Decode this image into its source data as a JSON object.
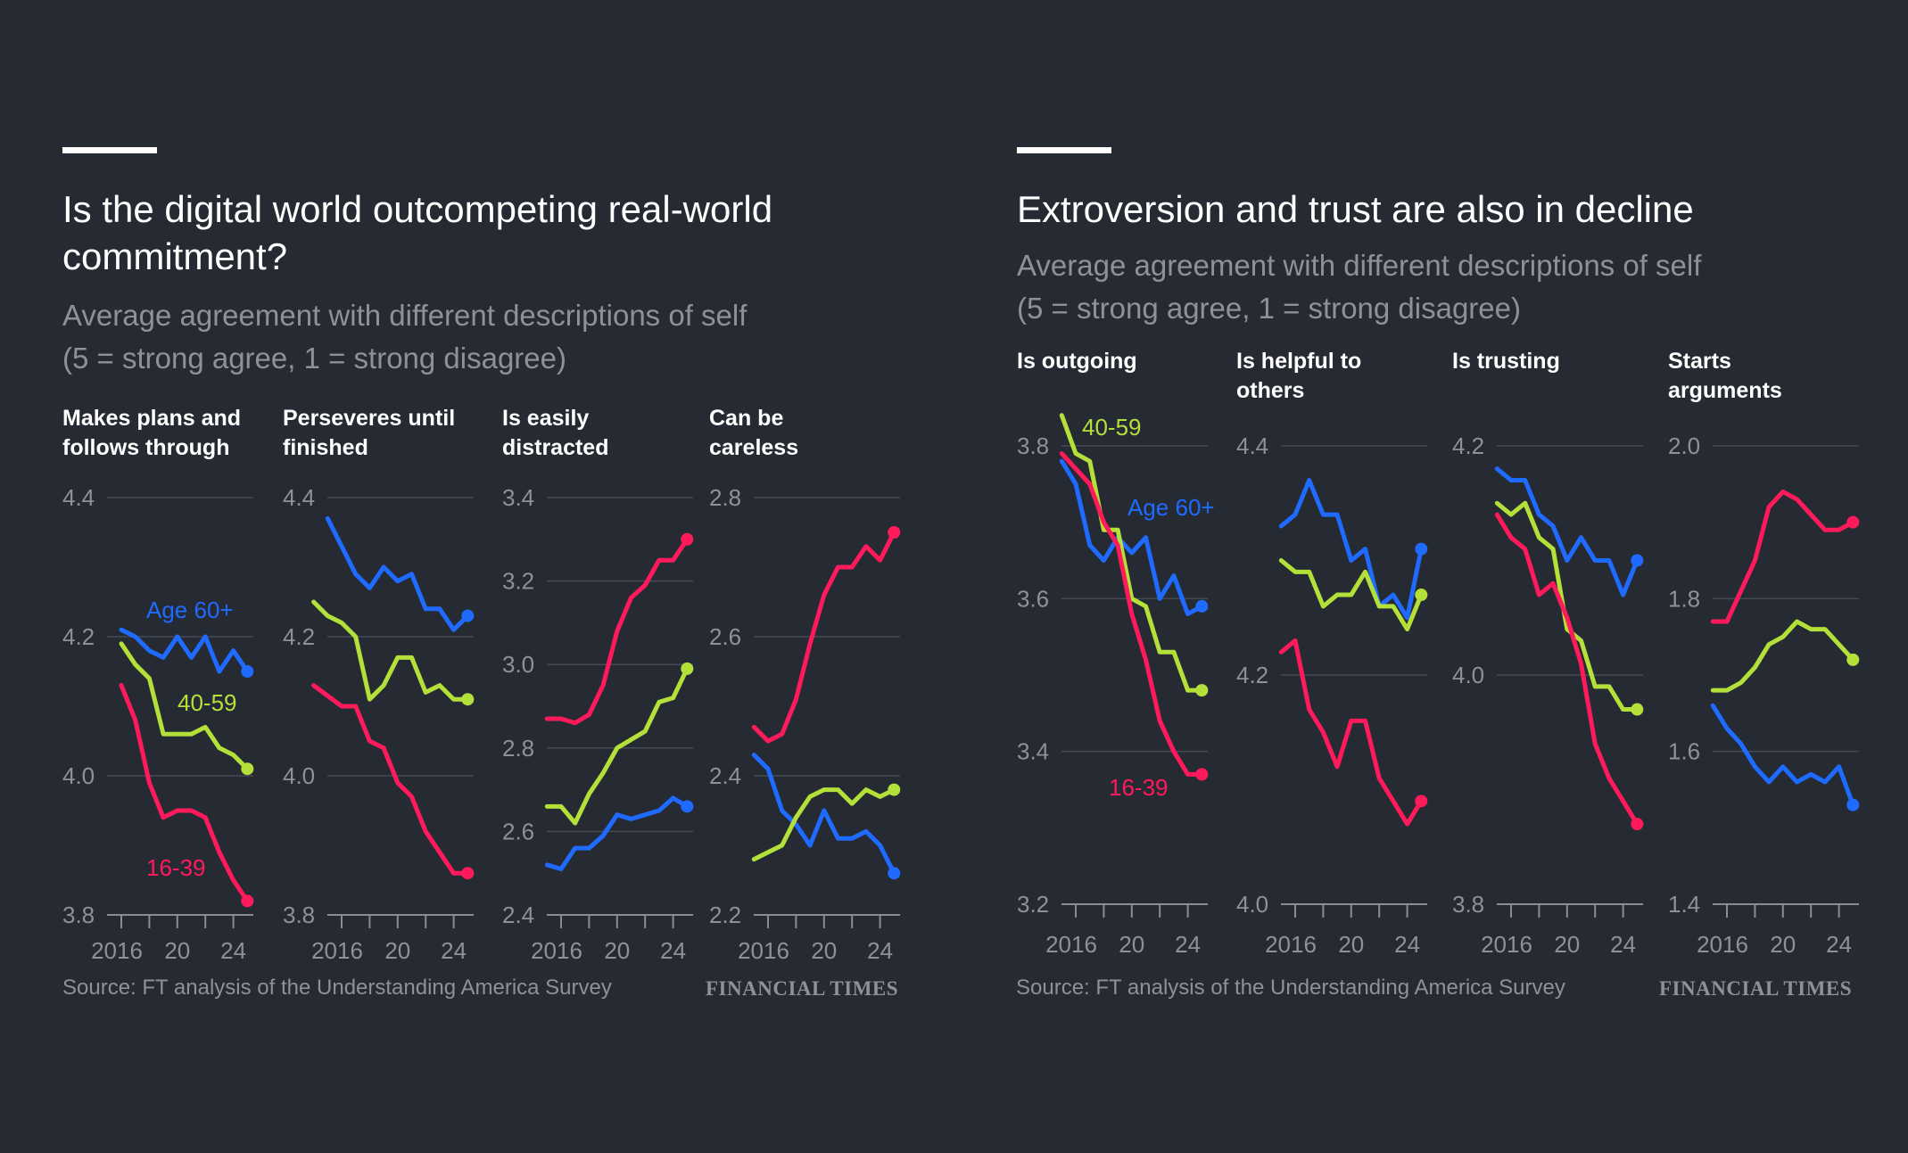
{
  "left": {
    "title": "Is the digital world outcompeting real-world commitment?",
    "subtitle_line1": "Average agreement with different descriptions of self",
    "subtitle_line2": "(5 = strong agree, 1 = strong disagree)",
    "source": "Source: FT analysis of the Understanding America Survey",
    "logo": "FINANCIAL TIMES"
  },
  "right": {
    "title": "Extroversion and trust are also in decline",
    "subtitle_line1": "Average agreement with different descriptions of self",
    "subtitle_line2": "(5 = strong agree, 1 = strong disagree)",
    "source": "Source: FT analysis of the Understanding America Survey",
    "logo": "FINANCIAL TIMES"
  },
  "colors": {
    "background": "#262a33",
    "age60": "#1f6bff",
    "age40_59": "#b4e03a",
    "age16_39": "#ff1a5c",
    "grid": "#464a54",
    "axis_text": "#8f9199"
  },
  "chart_data": [
    {
      "type": "line",
      "title": "Makes plans and follows through",
      "ylim": [
        3.8,
        4.4
      ],
      "yticks": [
        "4.4",
        "4.2",
        "4.0",
        "3.8"
      ],
      "xticks": [
        "2016",
        "20",
        "24"
      ],
      "x": [
        2016,
        2017,
        2018,
        2019,
        2020,
        2021,
        2022,
        2023,
        2024,
        2025
      ],
      "series": [
        {
          "name": "Age 60+",
          "label": "Age 60+",
          "color": "#1f6bff",
          "values": [
            4.21,
            4.2,
            4.18,
            4.17,
            4.2,
            4.17,
            4.2,
            4.15,
            4.18,
            4.15
          ]
        },
        {
          "name": "40-59",
          "label": "40-59",
          "color": "#b4e03a",
          "values": [
            4.19,
            4.16,
            4.14,
            4.06,
            4.06,
            4.06,
            4.07,
            4.04,
            4.03,
            4.01
          ]
        },
        {
          "name": "16-39",
          "label": "16-39",
          "color": "#ff1a5c",
          "values": [
            4.13,
            4.08,
            3.99,
            3.94,
            3.95,
            3.95,
            3.94,
            3.89,
            3.85,
            3.82
          ]
        }
      ]
    },
    {
      "type": "line",
      "title": "Perseveres until finished",
      "ylim": [
        3.8,
        4.4
      ],
      "yticks": [
        "4.4",
        "4.2",
        "4.0",
        "3.8"
      ],
      "xticks": [
        "2016",
        "20",
        "24"
      ],
      "x": [
        2014,
        2015,
        2016,
        2017,
        2018,
        2019,
        2020,
        2021,
        2022,
        2023,
        2024,
        2025
      ],
      "series": [
        {
          "name": "Age 60+",
          "color": "#1f6bff",
          "values": [
            null,
            4.37,
            4.33,
            4.29,
            4.27,
            4.3,
            4.28,
            4.29,
            4.24,
            4.24,
            4.21,
            4.23
          ]
        },
        {
          "name": "40-59",
          "color": "#b4e03a",
          "values": [
            4.25,
            4.23,
            4.22,
            4.2,
            4.11,
            4.13,
            4.17,
            4.17,
            4.12,
            4.13,
            4.11,
            4.11
          ]
        },
        {
          "name": "16-39",
          "color": "#ff1a5c",
          "values": [
            4.13,
            4.115,
            4.1,
            4.1,
            4.05,
            4.04,
            3.99,
            3.97,
            3.92,
            3.89,
            3.86,
            3.86
          ]
        }
      ]
    },
    {
      "type": "line",
      "title": "Is easily distracted",
      "ylim": [
        2.4,
        3.4
      ],
      "yticks": [
        "3.4",
        "3.2",
        "3.0",
        "2.8",
        "2.6",
        "2.4"
      ],
      "xticks": [
        "2016",
        "20",
        "24"
      ],
      "x": [
        2015,
        2016,
        2017,
        2018,
        2019,
        2020,
        2021,
        2022,
        2023,
        2024,
        2025
      ],
      "series": [
        {
          "name": "Age 60+",
          "color": "#1f6bff",
          "values": [
            2.52,
            2.51,
            2.56,
            2.56,
            2.59,
            2.64,
            2.63,
            2.64,
            2.65,
            2.68,
            2.66
          ]
        },
        {
          "name": "40-59",
          "color": "#b4e03a",
          "values": [
            2.66,
            2.66,
            2.62,
            2.69,
            2.74,
            2.8,
            2.82,
            2.84,
            2.91,
            2.92,
            2.99
          ]
        },
        {
          "name": "16-39",
          "color": "#ff1a5c",
          "values": [
            2.87,
            2.87,
            2.86,
            2.88,
            2.95,
            3.08,
            3.16,
            3.19,
            3.25,
            3.25,
            3.3
          ]
        }
      ]
    },
    {
      "type": "line",
      "title": "Can be careless",
      "ylim": [
        2.2,
        2.8
      ],
      "yticks": [
        "2.8",
        "2.6",
        "2.4",
        "2.2"
      ],
      "xticks": [
        "2016",
        "20",
        "24"
      ],
      "x": [
        2015,
        2016,
        2017,
        2018,
        2019,
        2020,
        2021,
        2022,
        2023,
        2024,
        2025
      ],
      "series": [
        {
          "name": "Age 60+",
          "color": "#1f6bff",
          "values": [
            2.43,
            2.41,
            2.35,
            2.33,
            2.3,
            2.35,
            2.31,
            2.31,
            2.32,
            2.3,
            2.26
          ]
        },
        {
          "name": "40-59",
          "color": "#b4e03a",
          "values": [
            2.28,
            2.29,
            2.3,
            2.34,
            2.37,
            2.38,
            2.38,
            2.36,
            2.38,
            2.37,
            2.38
          ]
        },
        {
          "name": "16-39",
          "color": "#ff1a5c",
          "values": [
            2.47,
            2.45,
            2.46,
            2.51,
            2.59,
            2.66,
            2.7,
            2.7,
            2.73,
            2.71,
            2.75
          ]
        }
      ]
    },
    {
      "type": "line",
      "title": "Is outgoing",
      "ylim": [
        3.2,
        3.8
      ],
      "yticks": [
        "3.8",
        "3.6",
        "3.4",
        "3.2"
      ],
      "xticks": [
        "2016",
        "20",
        "24"
      ],
      "x": [
        2015,
        2016,
        2017,
        2018,
        2019,
        2020,
        2021,
        2022,
        2023,
        2024,
        2025
      ],
      "series": [
        {
          "name": "Age 60+",
          "label": "Age 60+",
          "color": "#1f6bff",
          "values": [
            3.78,
            3.75,
            3.67,
            3.65,
            3.68,
            3.66,
            3.68,
            3.6,
            3.63,
            3.58,
            3.59
          ]
        },
        {
          "name": "40-59",
          "label": "40-59",
          "color": "#b4e03a",
          "values": [
            3.84,
            3.79,
            3.78,
            3.69,
            3.69,
            3.6,
            3.59,
            3.53,
            3.53,
            3.48,
            3.48
          ]
        },
        {
          "name": "16-39",
          "label": "16-39",
          "color": "#ff1a5c",
          "values": [
            3.79,
            3.77,
            3.75,
            3.7,
            3.67,
            3.58,
            3.52,
            3.44,
            3.4,
            3.37,
            3.37
          ]
        }
      ]
    },
    {
      "type": "line",
      "title": "Is helpful to others",
      "ylim": [
        4.0,
        4.4
      ],
      "yticks": [
        "4.4",
        "4.2",
        "4.0"
      ],
      "xticks": [
        "2016",
        "20",
        "24"
      ],
      "x": [
        2015,
        2016,
        2017,
        2018,
        2019,
        2020,
        2021,
        2022,
        2023,
        2024,
        2025
      ],
      "series": [
        {
          "name": "Age 60+",
          "color": "#1f6bff",
          "values": [
            4.33,
            4.34,
            4.37,
            4.34,
            4.34,
            4.3,
            4.31,
            4.26,
            4.27,
            4.25,
            4.31
          ]
        },
        {
          "name": "40-59",
          "color": "#b4e03a",
          "values": [
            4.3,
            4.29,
            4.29,
            4.26,
            4.27,
            4.27,
            4.29,
            4.26,
            4.26,
            4.24,
            4.27
          ]
        },
        {
          "name": "16-39",
          "color": "#ff1a5c",
          "values": [
            4.22,
            4.23,
            4.17,
            4.15,
            4.12,
            4.16,
            4.16,
            4.11,
            4.09,
            4.07,
            4.09
          ]
        }
      ]
    },
    {
      "type": "line",
      "title": "Is trusting",
      "ylim": [
        3.8,
        4.2
      ],
      "yticks": [
        "4.2",
        "4.0",
        "3.8"
      ],
      "xticks": [
        "2016",
        "20",
        "24"
      ],
      "x": [
        2015,
        2016,
        2017,
        2018,
        2019,
        2020,
        2021,
        2022,
        2023,
        2024,
        2025
      ],
      "series": [
        {
          "name": "Age 60+",
          "color": "#1f6bff",
          "values": [
            4.18,
            4.17,
            4.17,
            4.14,
            4.13,
            4.1,
            4.12,
            4.1,
            4.1,
            4.07,
            4.1
          ]
        },
        {
          "name": "40-59",
          "color": "#b4e03a",
          "values": [
            4.15,
            4.14,
            4.15,
            4.12,
            4.11,
            4.04,
            4.03,
            3.99,
            3.99,
            3.97,
            3.97
          ]
        },
        {
          "name": "16-39",
          "color": "#ff1a5c",
          "values": [
            4.14,
            4.12,
            4.11,
            4.07,
            4.08,
            4.05,
            4.01,
            3.94,
            3.91,
            3.89,
            3.87
          ]
        }
      ]
    },
    {
      "type": "line",
      "title": "Starts arguments",
      "ylim": [
        1.4,
        2.0
      ],
      "yticks": [
        "2.0",
        "1.8",
        "1.6",
        "1.4"
      ],
      "xticks": [
        "2016",
        "20",
        "24"
      ],
      "x": [
        2015,
        2016,
        2017,
        2018,
        2019,
        2020,
        2021,
        2022,
        2023,
        2024,
        2025
      ],
      "series": [
        {
          "name": "Age 60+",
          "color": "#1f6bff",
          "values": [
            1.66,
            1.63,
            1.61,
            1.58,
            1.56,
            1.58,
            1.56,
            1.57,
            1.56,
            1.58,
            1.53
          ]
        },
        {
          "name": "40-59",
          "color": "#b4e03a",
          "values": [
            1.68,
            1.68,
            1.69,
            1.71,
            1.74,
            1.75,
            1.77,
            1.76,
            1.76,
            1.74,
            1.72
          ]
        },
        {
          "name": "16-39",
          "color": "#ff1a5c",
          "values": [
            1.77,
            1.77,
            1.81,
            1.85,
            1.92,
            1.94,
            1.93,
            1.91,
            1.89,
            1.89,
            1.9
          ]
        }
      ]
    }
  ]
}
